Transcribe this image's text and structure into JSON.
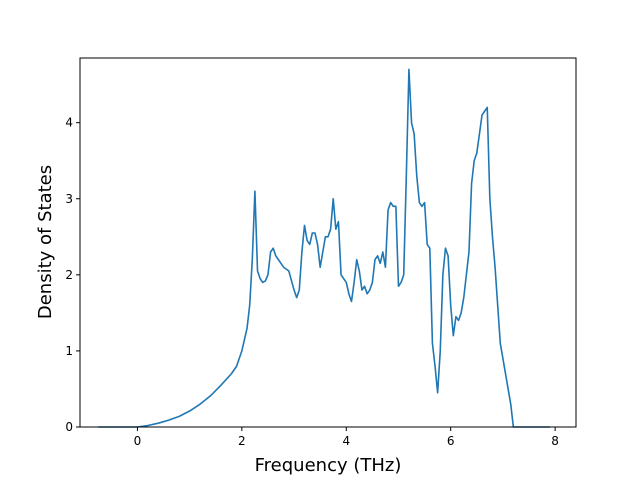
{
  "chart_data": {
    "type": "line",
    "title": "",
    "xlabel": "Frequency (THz)",
    "ylabel": "Density of States",
    "xlim": [
      -1.1,
      8.4
    ],
    "ylim": [
      0,
      4.85
    ],
    "xticks": [
      0,
      2,
      4,
      6,
      8
    ],
    "yticks": [
      0,
      1,
      2,
      3,
      4
    ],
    "grid": false,
    "legend": "none",
    "series": [
      {
        "color": "#1f77b4",
        "x": [
          -0.75,
          -0.5,
          -0.25,
          0.0,
          0.2,
          0.4,
          0.6,
          0.8,
          1.0,
          1.2,
          1.4,
          1.6,
          1.8,
          1.9,
          2.0,
          2.1,
          2.15,
          2.2,
          2.25,
          2.3,
          2.35,
          2.4,
          2.45,
          2.5,
          2.55,
          2.6,
          2.65,
          2.7,
          2.75,
          2.8,
          2.9,
          3.0,
          3.05,
          3.1,
          3.15,
          3.2,
          3.25,
          3.3,
          3.35,
          3.4,
          3.45,
          3.5,
          3.55,
          3.6,
          3.65,
          3.7,
          3.75,
          3.8,
          3.85,
          3.9,
          3.95,
          4.0,
          4.05,
          4.1,
          4.15,
          4.2,
          4.25,
          4.3,
          4.35,
          4.4,
          4.45,
          4.5,
          4.55,
          4.6,
          4.65,
          4.7,
          4.75,
          4.8,
          4.85,
          4.9,
          4.95,
          5.0,
          5.05,
          5.1,
          5.15,
          5.2,
          5.25,
          5.3,
          5.35,
          5.4,
          5.45,
          5.5,
          5.55,
          5.6,
          5.65,
          5.7,
          5.75,
          5.8,
          5.85,
          5.9,
          5.95,
          6.0,
          6.05,
          6.1,
          6.15,
          6.2,
          6.25,
          6.3,
          6.35,
          6.4,
          6.45,
          6.5,
          6.55,
          6.6,
          6.65,
          6.7,
          6.75,
          6.8,
          6.85,
          6.9,
          6.95,
          7.0,
          7.05,
          7.1,
          7.15,
          7.2,
          7.3,
          7.5,
          7.7,
          7.9
        ],
        "y": [
          0.0,
          0.0,
          0.0,
          0.0,
          0.02,
          0.05,
          0.09,
          0.14,
          0.21,
          0.3,
          0.41,
          0.55,
          0.7,
          0.8,
          1.0,
          1.3,
          1.6,
          2.2,
          3.1,
          2.05,
          1.95,
          1.9,
          1.92,
          2.0,
          2.3,
          2.35,
          2.25,
          2.2,
          2.15,
          2.1,
          2.05,
          1.8,
          1.7,
          1.8,
          2.3,
          2.65,
          2.45,
          2.4,
          2.55,
          2.55,
          2.4,
          2.1,
          2.3,
          2.5,
          2.5,
          2.6,
          3.0,
          2.6,
          2.7,
          2.0,
          1.95,
          1.9,
          1.75,
          1.65,
          1.9,
          2.2,
          2.05,
          1.8,
          1.85,
          1.75,
          1.8,
          1.9,
          2.2,
          2.25,
          2.15,
          2.3,
          2.1,
          2.85,
          2.95,
          2.9,
          2.9,
          1.85,
          1.9,
          2.0,
          3.3,
          4.7,
          4.0,
          3.85,
          3.3,
          2.95,
          2.9,
          2.95,
          2.4,
          2.35,
          1.1,
          0.8,
          0.45,
          1.0,
          2.0,
          2.35,
          2.25,
          1.6,
          1.2,
          1.45,
          1.4,
          1.5,
          1.7,
          2.0,
          2.3,
          3.2,
          3.5,
          3.6,
          3.85,
          4.1,
          4.15,
          4.2,
          3.0,
          2.5,
          2.1,
          1.6,
          1.1,
          0.9,
          0.7,
          0.5,
          0.3,
          0.0,
          0.0,
          0.0,
          0.0,
          0.0
        ]
      }
    ]
  }
}
